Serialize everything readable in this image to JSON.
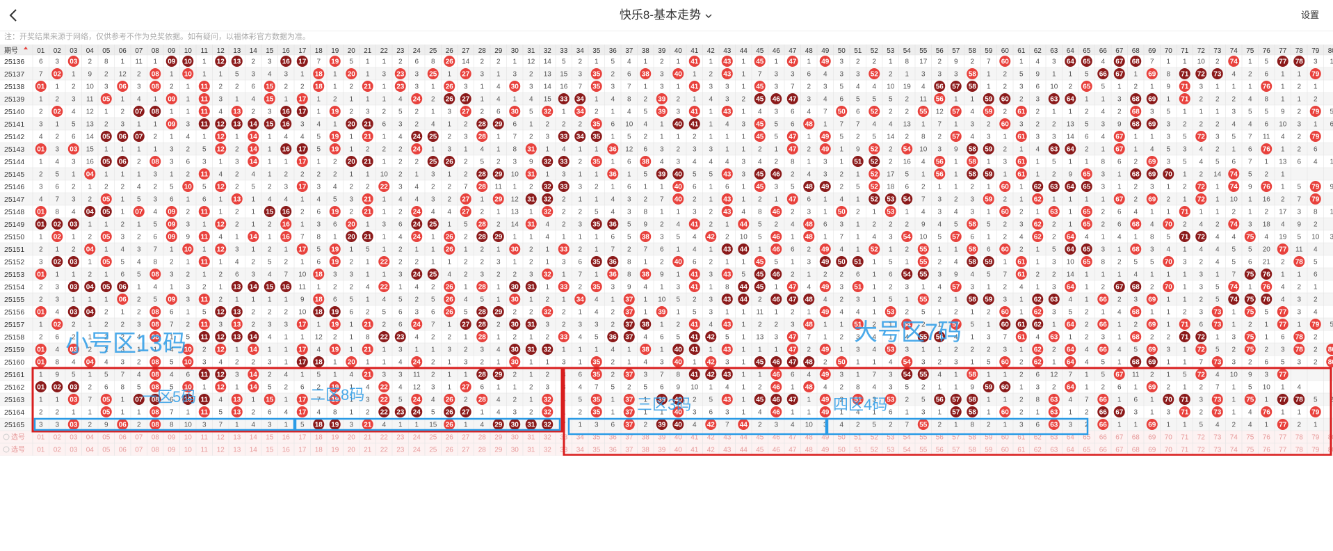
{
  "header": {
    "title": "快乐8-基本走势",
    "settings_label": "设置"
  },
  "notice": "注：开奖结果来源于网络，仅供参考不作为兑奖依据。如有疑问，以福体彩官方数据为准。",
  "table": {
    "period_header": "期号",
    "select_label": "选号",
    "periods": [
      "25136",
      "25137",
      "25138",
      "25139",
      "25140",
      "25141",
      "25142",
      "25143",
      "25144",
      "25145",
      "25146",
      "25147",
      "25148",
      "25149",
      "25150",
      "25151",
      "25152",
      "25153",
      "25154",
      "25155",
      "25156",
      "25157",
      "25158",
      "25159",
      "25160",
      "25161",
      "25162",
      "25163",
      "25164",
      "25165"
    ],
    "rows": [
      "6 3 H 2 8 1 11 1 H H 1 H H 2 3 H H 7 H 5 1 1 2 6 8 H 14 2 2 1 12 14 5 2 1 5 4 1 2 1 H 1 H 1 H 1 H 1 H 3 2 2 1 8 17 2 9 2 7 H 1 4 3 H H 4 H H 7 1 1 10 2 H 1 5 H H 3 1",
      "7 H 1 9 2 12 2 H 1 H 1 1 5 3 4 3 1 H 1 H 1 3 H 3 H 1 H 3 1 3 2 13 15 3 H 2 6 H 3 H 1 2 H 1 7 3 3 6 4 3 3 H 2 1 3 3 3 H 1 2 5 9 1 1 5 H H 1 H 8 H H H 4 2 6 1 1 H",
      "H 1 2 10 3 H 3 H 2 1 H 2 2 6 H 2 2 H 1 2 H 1 H 3 1 H 3 1 4 H 3 14 16 7 H 3 7 1 3 1 H 3 3 1 H 3 7 2 3 5 4 4 10 19 4 H H H 1 2 3 6 10 2 H 5 1 2 1 9 H 3 1 1 1 H 1 2 1",
      "1 2 3 11 H 1 4 1 H 1 H 3 1 4 H 1 H 1 2 1 1 1 4 H 2 H H 1 4 1 4 15 H H 1 4 8 2 H 2 1 4 3 2 H H H 3 4 6 5 5 5 2 11 H 1 1 H H 2 3 H H 1 1 3 H H 1 H 2 2 2 4 8 1 1 2",
      "2 H 4 12 1 2 H H 1 1 H 4 H 2 3 H H 1 H 2 3 2 5 2 1 3 H 2 6 H 5 H 1 H 2 1 4 5 H 3 H 1 H 1 4 3 6 4 7 H 6 H 2 2 H 12 H 4 H 2 H 2 1 1 2 4 2 H 3 5 1 1 1 3 5 5 9 2 H 5",
      "3 1 5 13 2 3 1 1 H 3 H H H H H H 3 4 1 H H 6 3 2 4 1 2 H H 6 1 2 2 2 H 6 10 4 1 H H 1 4 3 H 5 6 H 1 7 7 4 4 13 1 7 1 3 2 H 3 2 2 13 5 3 9 H H 3 2 2 2 4 4 6 10 3 1 6",
      "4 2 6 14 H H H 2 1 4 1 H 1 H 1 4 4 5 H 1 H 1 4 H H 2 3 H 1 7 2 3 H H H 1 5 2 1 1 2 1 1 1 H 5 H 1 H 5 2 5 14 2 8 2 H 4 3 1 H 3 3 14 6 4 H 1 1 3 5 H 3 5 7 11 4 2 H",
      "H 3 H 15 1 1 1 1 3 2 5 H 2 H 1 H H 5 H 1 2 2 2 H 1 3 1 4 1 8 H 1 4 1 1 H 12 6 3 2 3 3 1 1 2 1 H 2 H 1 9 H 2 H 10 3 9 H H 2 1 4 H H 2 1 H 1 4 5 3 4 2 1 6 H 1 2 6",
      "1 4 3 16 H H 2 H 3 6 3 1 3 H 1 1 H 1 2 H H 1 2 2 H H 2 5 2 3 9 H H 2 H 1 6 H 4 3 4 4 4 3 4 2 8 1 3 1 H H 2 16 4 H 1 H 1 3 H 1 5 1 1 8 6 2 H 3 5 4 5 6 7 1 13 6 4 1",
      "2 5 1 H 1 1 1 3 1 2 H 4 2 4 1 2 2 2 2 1 1 10 2 1 3 1 2 H H 10 H 1 3 1 1 H 1 5 H H 5 5 H 3 H H 2 4 3 2 1 H 17 5 1 H 1 H H 1 H 1 2 9 H 3 1 H H H 1 2 14 H 5 2 1",
      "3 6 2 1 2 2 4 2 5 H 5 H 2 5 2 3 H 3 4 2 2 H 3 4 2 2 7 H 11 1 2 H H 3 2 1 6 1 1 H 6 1 6 1 H 3 5 H H 2 5 H 18 6 2 1 1 2 1 H 1 H H H H 3 1 2 3 1 2 H 1 H 9 H 1 5 H 9",
      "4 7 3 2 H 1 5 3 6 1 6 1 H 1 4 4 1 4 5 3 H 1 4 4 3 2 H 1 H 12 H H 2 1 1 4 3 2 7 H 2 1 H 1 2 1 H 6 1 4 1 H H H 7 3 2 3 H 2 1 H 1 1 1 1 H 2 H 2 1 H 1 10 1 16 2 7 H",
      "H 8 4 H H 1 H 4 H 2 H 1 2 1 H H 2 6 H 2 H 1 2 H 4 4 H 2 1 13 1 H 2 2 5 4 3 8 1 1 3 2 H 4 8 H 2 3 1 H 2 1 H 1 4 3 4 3 1 H 2 1 H 1 H 2 6 4 1 1 H 1 1 2 1 2 17 3 8 1",
      "H H H 1 1 2 1 5 H 3 1 H 2 1 2 H 1 3 6 H 1 3 6 H H 1 5 H 2 14 H 4 2 3 H H 5 9 2 4 H 2 1 H 5 2 4 H 6 3 1 2 2 2 9 4 5 H 5 2 3 H 2 1 H 2 6 H 4 H 2 4 2 H 3 18 4 9 2",
      "1 H 1 2 H 3 2 6 H 9 H 4 1 H 1 H 7 8 1 H H 1 4 H 1 H 2 H H 1 1 4 1 1 1 6 5 H 3 5 4 H 2 10 5 H 1 H 1 7 1 4 3 H 10 5 H 6 1 2 4 H 2 H 4 1 4 1 8 5 H H 4 4 H 4 19 5 10 3",
      "2 1 2 H 1 4 3 7 1 H 1 H 3 1 2 1 H 5 H 1 5 1 2 1 1 H 1 2 1 H 2 1 H 2 1 7 2 7 6 1 4 1 H H 1 H 6 2 H 4 1 H 1 2 H 1 1 H 6 H 2 1 5 H H 3 1 H 3 4 1 4 4 5 5 20 H 11 4",
      "3 H H 1 H 5 4 8 2 1 H 1 4 2 5 2 1 6 H 2 1 H 2 2 1 1 2 2 3 1 2 1 3 6 H H 8 1 2 H 6 2 1 1 H 5 1 3 H H H 1 5 1 H 2 4 H H 1 H 1 3 10 H 8 2 5 5 H 3 2 4 5 6 21 2 H 5",
      "H 1 1 2 1 6 5 H 3 2 1 2 6 3 4 7 10 H 3 3 1 1 3 H H 4 2 3 2 2 3 H 1 7 1 H 8 H 9 1 H 3 H 5 H H 2 1 2 2 6 1 6 H H 3 9 4 5 7 H 2 2 14 1 1 1 4 1 1 1 3 1 7 H H 1 1 6",
      "2 3 H H H H 1 4 1 3 2 1 H H H H 11 1 2 2 4 H 1 4 2 H 1 H 1 H H 1 H 2 H 3 9 4 1 3 H 1 8 H H 1 H 4 H 3 H 1 2 3 1 4 H 3 1 2 4 1 3 H 1 2 H H 2 H 1 3 5 H 1 H 4 2 1",
      "2 3 1 1 1 H 2 5 H 3 H 2 1 1 1 1 9 H 6 5 1 4 5 2 5 H 4 5 1 H 1 2 1 H 4 1 H 1 10 5 2 3 H H 2 H H H 4 2 3 1 5 1 H 2 1 H H 3 1 H H 4 1 H 2 3 H 1 1 2 5 H H H 4 3 2",
      "H 4 H H 2 1 2 H 6 1 5 H H 2 2 2 10 H H 6 2 5 6 3 6 H 5 H H 2 2 H 2 1 4 2 H 1 H 1 5 3 1 1 11 1 2 1 H 4 4 1 H 2 5 1 2 1 2 H 1 H 3 5 2 1 4 H 1 1 2 3 H 1 H 5 H 3 4",
      "1 H 2 1 2 2 3 H 7 2 H 3 H 2 3 3 H 1 H 1 H 2 6 H 7 1 H H 2 H H 3 2 3 3 2 H H 1 2 H 4 H 1 2 2 3 H 1 1 H 2 1 H 2 1 H 5 1 H H H 1 H 2 H 1 2 H 1 H 6 H 1 2 1 H 1 H 5",
      "2 6 2 1 2 2 4 H 1 5 H H H H 4 1 1 12 2 1 8 H H 4 2 2 1 H 1 2 1 2 H 4 5 H H 4 6 5 H H 5 1 13 3 H 7 1 2 3 4 1 4 H H 4 1 3 7 H 4 H 1 2 3 1 H 2 2 H H 1 3 H 1 6 H 2",
      "H 4 H 2 1 3 1 1 4 H 2 H 1 H 1 1 H 4 H 1 H 1 3 1 1 3 2 3 4 H H H 1 1 1 4 1 H 1 H H 1 H 1 1 1 H 2 H 1 3 4 H 3 1 1 2 2 2 3 1 H 2 H 4 H 4 5 H 3 1 H 5 2 H 2 3 H 2 H",
      "H 8 4 H 4 3 2 H 5 H 3 4 2 2 3 1 H H 1 H 1 1 4 H 2 1 3 2 1 H 1 1 3 1 H 2 1 4 3 H 1 H 3 1 H H H H 2 H 1 1 4 H 3 2 3 1 5 H 2 H 1 H 4 5 1 H H 1 1 7 H 3 2 6 5 3 2 H",
      "1 9 5 1 5 7 4 H 4 6 H H 3 H 2 4 1 5 1 4 H 3 3 11 2 1 1 H H 2 1 2 3 6 H 2 H 3 7 8 H H H 1 1 H 6 4 H 3 1 7 3 H H 4 1 H 1 1 2 6 12 7 1 5 H 11 2 1 5 H 4 10 9 3 H",
      "H H H 2 6 8 5 H 5 H 1 H 1 H 5 2 6 2 H 1 4 H 4 12 3 1 H 6 1 1 2 3 3 4 7 5 2 5 6 9 10 1 4 1 2 H 1 H 4 2 8 4 3 5 2 1 1 9 H H 1 3 2 H 1 2 6 1 H 2 1 2 7 1 5 10 1 4",
      "1 1 H 7 H 1 H H 6 H H 4 H 1 H 1 H 7 H 1 3 H 5 H 4 H 2 H 4 2 1 H 4 5 H 1 H 1 H H 2 5 H 1 H H H 1 H 2 H 3 H 2 5 H H H 1 1 2 8 H 4 7 H 1 6 1 H H 3 H 1 H 1 H H 5 2",
      "2 2 1 1 H 1 1 H 7 1 H 5 H 2 6 4 H 4 8 1 2 H H H 5 H H 1 4 3 2 H 1 2 H 1 H 1 1 H 3 6 3 1 4 H 1 1 H 1 4 1 6 1 3 1 H H 1 H 2 1 H 1 2 H H 3 1 3 H 2 H 1 4 H 1 1 H",
      "3 3 H 2 9 H 2 H 8 10 3 7 1 4 3 1 5 H H 3 H 4 1 1 15 H 1 4 H H H H 7 1 3 6 H 2 H H 4 H 7 H 2 3 4 10 3 4 2 5 2 7 H 2 1 8 2 1 3 6 H 3 2 H 1 1 H 1 1 5 4 2 4 1 H 2 1"
    ],
    "select_rows": 2
  },
  "annotations": {
    "small_zone": "小号区13码",
    "big_zone": "大号区7码",
    "zone1": "一区5码",
    "zone2": "二区8码",
    "zone3": "三区3码",
    "zone4": "四区4码"
  },
  "colors": {
    "ball_red": "#e8413c",
    "ball_dark": "#8b1a1a",
    "omission_text": "#555555",
    "row_alt": "#f5f5f5",
    "header_bg": "#eeeeee",
    "number_pink": "#e69a9a",
    "select_bg": "#fdf2f2",
    "annot_blue": "#2b9be6",
    "frame_red": "#d91e1e",
    "frame_blue": "#2b9be6"
  }
}
